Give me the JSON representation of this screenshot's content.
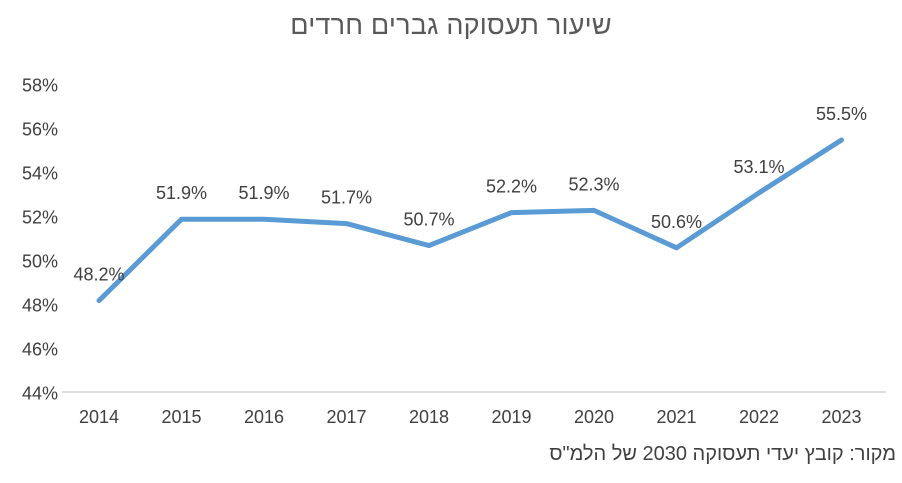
{
  "chart_data": {
    "type": "line",
    "title": "שיעור תעסוקה גברים חרדים",
    "categories": [
      "2014",
      "2015",
      "2016",
      "2017",
      "2018",
      "2019",
      "2020",
      "2021",
      "2022",
      "2023"
    ],
    "values": [
      48.2,
      51.9,
      51.9,
      51.7,
      50.7,
      52.2,
      52.3,
      50.6,
      53.1,
      55.5
    ],
    "data_labels": [
      "48.2%",
      "51.9%",
      "51.9%",
      "51.7%",
      "50.7%",
      "52.2%",
      "52.3%",
      "50.6%",
      "53.1%",
      "55.5%"
    ],
    "y_tick_labels": [
      "58%",
      "56%",
      "54%",
      "52%",
      "50%",
      "48%",
      "46%",
      "44%"
    ],
    "ylim": [
      44,
      58
    ],
    "y_tick_step": 2,
    "xlabel": "",
    "ylabel": "",
    "grid": "off",
    "legend": "none",
    "series_name": "",
    "line_color": "#5B9BD5",
    "axis_line_color": "#D9D9D9",
    "label_color": "#404040",
    "title_color": "#595959",
    "source": "מקור: קובץ יעדי תעסוקה 2030 של הלמ\"ס"
  }
}
